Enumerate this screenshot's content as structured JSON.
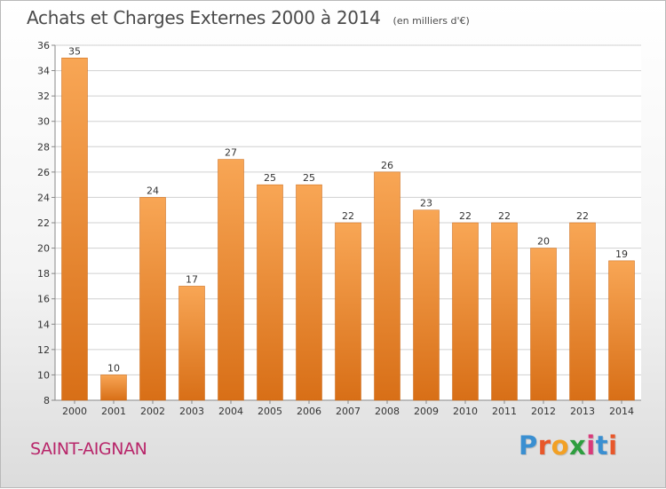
{
  "title": "Achats et Charges Externes 2000 à 2014",
  "subtitle": "(en milliers d'€)",
  "location": "SAINT-AIGNAN",
  "logo": {
    "text": "Proxiti",
    "letters": [
      {
        "char": "P",
        "color": "#3a8fd1"
      },
      {
        "char": "r",
        "color": "#e8572a"
      },
      {
        "char": "o",
        "color": "#f2a024"
      },
      {
        "char": "x",
        "color": "#2e9e3f"
      },
      {
        "char": "i",
        "color": "#d93a7a"
      },
      {
        "char": "t",
        "color": "#3a8fd1"
      },
      {
        "char": "i",
        "color": "#e8572a"
      }
    ]
  },
  "colors": {
    "bar_top": "#f8a655",
    "bar_bottom": "#d86f17",
    "grid": "#d0d0d0",
    "axis_text": "#333333",
    "title": "#4a4a4a",
    "location": "#b8266a"
  },
  "chart_data": {
    "type": "bar",
    "categories": [
      "2000",
      "2001",
      "2002",
      "2003",
      "2004",
      "2005",
      "2006",
      "2007",
      "2008",
      "2009",
      "2010",
      "2011",
      "2012",
      "2013",
      "2014"
    ],
    "values": [
      35,
      10,
      24,
      17,
      27,
      25,
      25,
      22,
      26,
      23,
      22,
      22,
      20,
      22,
      19
    ],
    "data_labels": [
      "35",
      "10",
      "24",
      "17",
      "27",
      "25",
      "25",
      "22",
      "26",
      "23",
      "22",
      "22",
      "20",
      "22",
      "19"
    ],
    "ylim": [
      8,
      36
    ],
    "yticks": [
      8,
      10,
      12,
      14,
      16,
      18,
      20,
      22,
      24,
      26,
      28,
      30,
      32,
      34,
      36
    ],
    "grid": true,
    "legend": "none",
    "xlabel": "",
    "ylabel": ""
  }
}
